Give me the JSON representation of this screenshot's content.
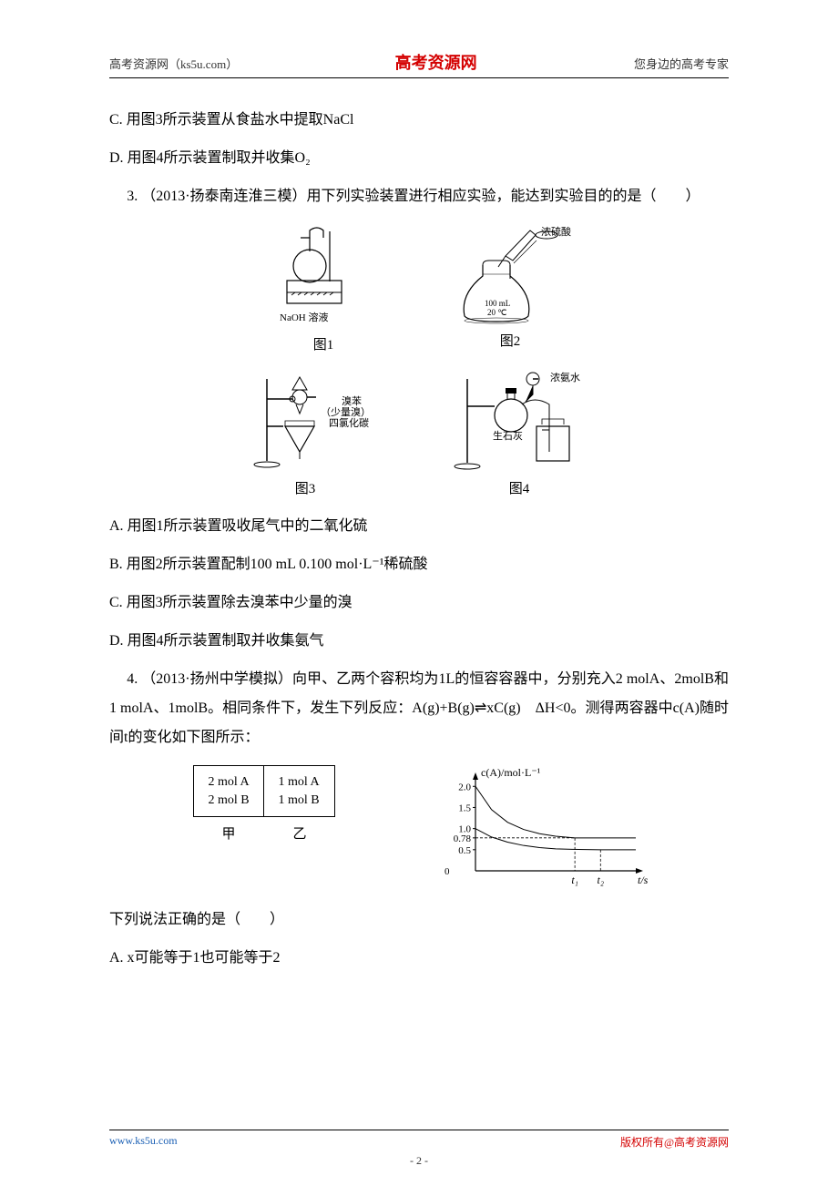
{
  "header": {
    "left": "高考资源网（ks5u.com）",
    "center": "高考资源网",
    "right": "您身边的高考专家"
  },
  "options_top": {
    "c": "C.  用图3所示装置从食盐水中提取NaCl",
    "d": "D.  用图4所示装置制取并收集O₂"
  },
  "q3": {
    "stem": " 3. （2013·扬泰南连淮三模）用下列实验装置进行相应实验，能达到实验目的的是（　　）",
    "fig1": {
      "annot": "NaOH 溶液",
      "caption": "图1"
    },
    "fig2": {
      "annot_top": "浓硫酸",
      "annot_flask1": "100 mL",
      "annot_flask2": "20 ℃",
      "caption": "图2"
    },
    "fig3": {
      "annot_top": "溴苯",
      "annot_mid": "（少量溴）",
      "annot_bottom": "四氯化碳",
      "caption": "图3"
    },
    "fig4": {
      "annot_top": "浓氨水",
      "annot_bottom": "生石灰",
      "caption": "图4"
    },
    "a": "A.  用图1所示装置吸收尾气中的二氧化硫",
    "b": "B.  用图2所示装置配制100 mL 0.100 mol·L⁻¹稀硫酸",
    "c": "C.  用图3所示装置除去溴苯中少量的溴",
    "d": "D.  用图4所示装置制取并收集氨气"
  },
  "q4": {
    "stem": " 4. （2013·扬州中学模拟）向甲、乙两个容积均为1L的恒容容器中，分别充入2 molA、2molB和1 molA、1molB。相同条件下，发生下列反应：A(g)+B(g)⇌xC(g)　ΔH<0。测得两容器中c(A)随时间t的变化如下图所示：",
    "containers": {
      "jia": {
        "line1": "2 mol A",
        "line2": "2 mol B",
        "label": "甲"
      },
      "yi": {
        "line1": "1 mol A",
        "line2": "1 mol B",
        "label": "乙"
      }
    },
    "graph": {
      "type": "line",
      "ylabel": "c(A)/mol·L⁻¹",
      "xlabel": "t/s",
      "xlim": [
        0,
        10
      ],
      "ylim": [
        0,
        2.2
      ],
      "yticks": [
        0.5,
        0.78,
        1.0,
        1.5,
        2.0
      ],
      "ytick_labels": [
        "0.5",
        "0.78",
        "1.0",
        "1.5",
        "2.0"
      ],
      "xtick_marks": [
        6.2,
        7.8
      ],
      "xtick_labels": [
        "t₁",
        "t₂"
      ],
      "background_color": "#ffffff",
      "axis_color": "#000000",
      "series": [
        {
          "points": [
            [
              0,
              2.0
            ],
            [
              1,
              1.45
            ],
            [
              2,
              1.15
            ],
            [
              3,
              0.98
            ],
            [
              4,
              0.88
            ],
            [
              5,
              0.82
            ],
            [
              6.2,
              0.78
            ],
            [
              8,
              0.78
            ],
            [
              10,
              0.78
            ]
          ],
          "color": "#000000",
          "width": 1
        },
        {
          "points": [
            [
              0,
              1.0
            ],
            [
              1,
              0.8
            ],
            [
              2,
              0.68
            ],
            [
              3,
              0.6
            ],
            [
              4,
              0.55
            ],
            [
              5,
              0.52
            ],
            [
              6,
              0.51
            ],
            [
              7.8,
              0.5
            ],
            [
              10,
              0.5
            ]
          ],
          "color": "#000000",
          "width": 1
        }
      ]
    },
    "follow": "下列说法正确的是（　　）",
    "a": "A.  x可能等于1也可能等于2"
  },
  "footer": {
    "left": "www.ks5u.com",
    "right": "版权所有@高考资源网",
    "pagenum": "- 2 -"
  },
  "colors": {
    "accent_red": "#d40000",
    "link_blue": "#1a5fb4",
    "text": "#000000"
  }
}
